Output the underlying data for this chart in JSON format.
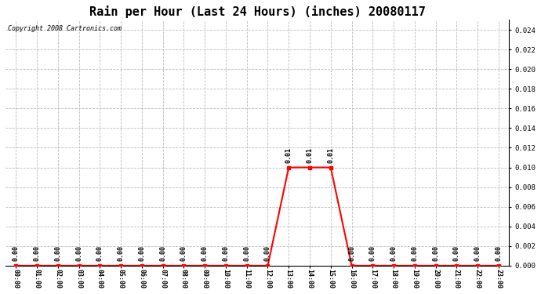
{
  "title": "Rain per Hour (Last 24 Hours) (inches) 20080117",
  "copyright_text": "Copyright 2008 Cartronics.com",
  "hours": [
    0,
    1,
    2,
    3,
    4,
    5,
    6,
    7,
    8,
    9,
    10,
    11,
    12,
    13,
    14,
    15,
    16,
    17,
    18,
    19,
    20,
    21,
    22,
    23
  ],
  "values": [
    0.0,
    0.0,
    0.0,
    0.0,
    0.0,
    0.0,
    0.0,
    0.0,
    0.0,
    0.0,
    0.0,
    0.0,
    0.0,
    0.01,
    0.01,
    0.01,
    0.0,
    0.0,
    0.0,
    0.0,
    0.0,
    0.0,
    0.0,
    0.0
  ],
  "line_color": "red",
  "marker_color": "red",
  "background_color": "white",
  "grid_color": "#bbbbbb",
  "ylim": [
    0,
    0.025
  ],
  "yticks": [
    0.0,
    0.002,
    0.004,
    0.006,
    0.008,
    0.01,
    0.012,
    0.014,
    0.016,
    0.018,
    0.02,
    0.022,
    0.024
  ],
  "title_fontsize": 11,
  "annotation_fontsize": 6,
  "copyright_fontsize": 6,
  "tick_fontsize": 6,
  "ytick_fontsize": 6.5
}
